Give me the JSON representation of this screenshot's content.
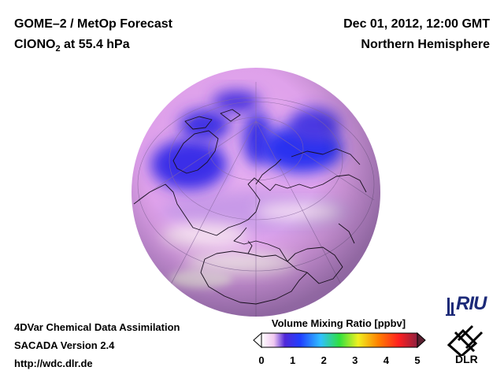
{
  "header": {
    "title_line1": "GOME–2 / MetOp Forecast",
    "species_prefix": "ClONO",
    "species_sub": "2",
    "species_suffix": " at 55.4 hPa",
    "date": "Dec 01, 2012, 12:00 GMT",
    "region": "Northern Hemisphere"
  },
  "footer": {
    "line1": "4DVar Chemical Data Assimilation",
    "line2": "SACADA Version 2.4",
    "line3": "http://wdc.dlr.de"
  },
  "colorbar": {
    "title": "Volume Mixing Ratio [ppbv]",
    "ticks": [
      "0",
      "1",
      "2",
      "3",
      "4",
      "5"
    ],
    "min": 0,
    "max": 5,
    "colors": [
      "#ffffff",
      "#f0c8f0",
      "#5028d8",
      "#2040ff",
      "#30c0ff",
      "#30e040",
      "#f0f020",
      "#ff8000",
      "#ff2020",
      "#902040"
    ]
  },
  "logos": {
    "riu": "RIU",
    "dlr": "DLR"
  }
}
